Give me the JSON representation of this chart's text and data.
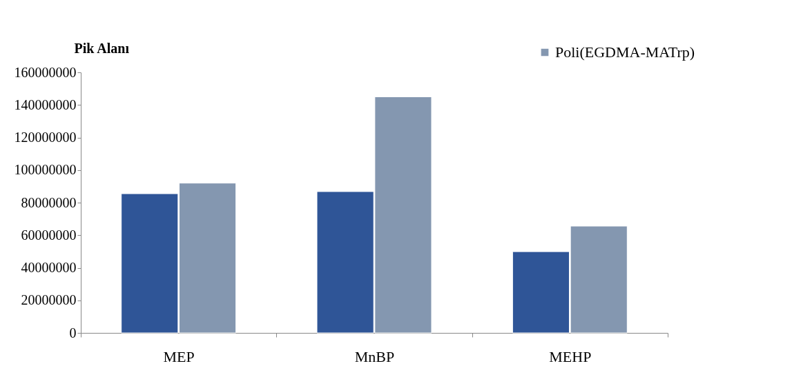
{
  "chart_data": {
    "type": "bar",
    "ylabel": "Pik Alanı",
    "categories": [
      "MEP",
      "MnBP",
      "MEHP"
    ],
    "series": [
      {
        "color": "#2f5597",
        "values": [
          85500000,
          86800000,
          49900000
        ]
      },
      {
        "name": "Poli(EGDMA-MATrp)",
        "color": "#8497b0",
        "values": [
          92000000,
          145000000,
          65600000
        ]
      }
    ],
    "ylim": [
      0,
      160000000
    ],
    "yticks": [
      0,
      20000000,
      40000000,
      60000000,
      80000000,
      100000000,
      120000000,
      140000000,
      160000000
    ],
    "grid": false,
    "legend": "top right"
  }
}
